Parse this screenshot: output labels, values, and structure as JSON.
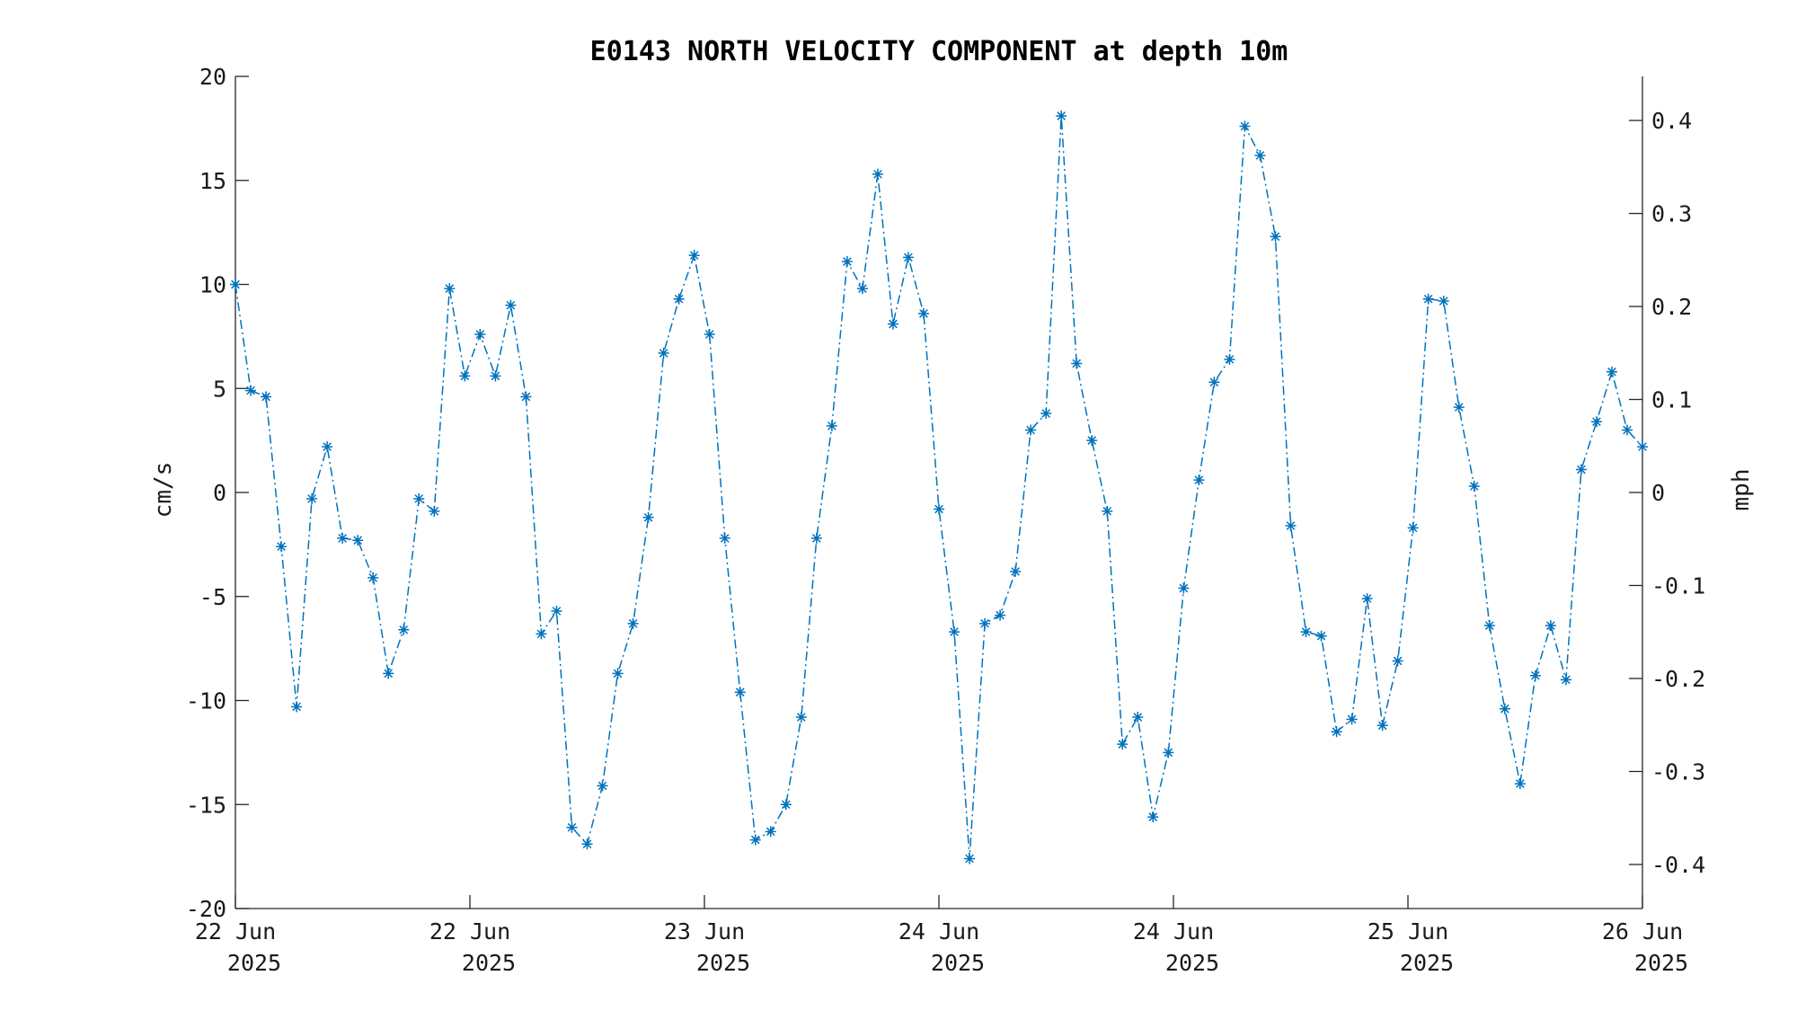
{
  "chart_data": {
    "type": "line",
    "title": "E0143 NORTH VELOCITY COMPONENT at depth 10m",
    "ylabel": "cm/s",
    "ylabel_right": "mph",
    "ylim": [
      -20,
      20
    ],
    "ylim_right": [
      -0.4474,
      0.4474
    ],
    "x_range": [
      0,
      96
    ],
    "x_unit": "hours after 22 Jun 2025 00:00",
    "yticks": [
      "-20",
      "-15",
      "-10",
      "-5",
      "0",
      "5",
      "10",
      "15",
      "20"
    ],
    "yticks_right": [
      "-0.4",
      "-0.3",
      "-0.2",
      "-0.1",
      "0",
      "0.1",
      "0.2",
      "0.3",
      "0.4"
    ],
    "xticks": [
      {
        "day": "22 Jun",
        "year": "2025"
      },
      {
        "day": "22 Jun",
        "year": "2025"
      },
      {
        "day": "23 Jun",
        "year": "2025"
      },
      {
        "day": "24 Jun",
        "year": "2025"
      },
      {
        "day": "24 Jun",
        "year": "2025"
      },
      {
        "day": "25 Jun",
        "year": "2025"
      },
      {
        "day": "26 Jun",
        "year": "2025"
      }
    ],
    "color": "#0072BD",
    "grid": false,
    "series": [
      {
        "values": [
          10.0,
          4.9,
          4.6,
          -2.6,
          -10.3,
          -0.3,
          2.2,
          -2.2,
          -2.3,
          -4.1,
          -8.7,
          -6.6,
          -0.3,
          -0.9,
          9.8,
          5.6,
          7.6,
          5.6,
          9.0,
          4.6,
          -6.8,
          -5.7,
          -16.1,
          -16.9,
          -14.1,
          -8.7,
          -6.3,
          -1.2,
          6.7,
          9.3,
          11.4,
          7.6,
          -2.2,
          -9.6,
          -16.7,
          -16.3,
          -15.0,
          -10.8,
          -2.2,
          3.2,
          11.1,
          9.8,
          15.3,
          8.1,
          11.3,
          8.6,
          -0.8,
          -6.7,
          -17.6,
          -6.3,
          -5.9,
          -3.8,
          3.0,
          3.8,
          18.1,
          6.2,
          2.5,
          -0.9,
          -12.1,
          -10.8,
          -15.6,
          -12.5,
          -4.6,
          0.6,
          5.3,
          6.4,
          17.6,
          16.2,
          12.3,
          -1.6,
          -6.7,
          -6.9,
          -11.5,
          -10.9,
          -5.1,
          -11.2,
          -8.1,
          -1.7,
          9.3,
          9.2,
          4.1,
          0.3,
          -6.4,
          -10.4,
          -14.0,
          -8.8,
          -6.4,
          -9.0,
          1.1,
          3.4,
          5.8,
          3.0,
          2.2
        ]
      }
    ]
  }
}
